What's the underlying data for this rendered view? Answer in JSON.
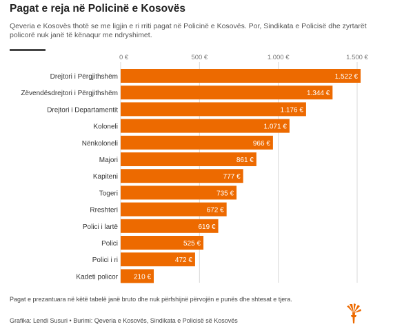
{
  "header": {
    "title": "Pagat e reja në Policinë e Kosovës",
    "subtitle": "Qeveria e Kosovës thotë se me ligjin e ri rriti pagat në Policinë e Kosovës. Por, Sindikata e Policisë dhe zyrtarët policorë nuk janë të kënaqur me ndryshimet."
  },
  "chart_data": {
    "type": "bar",
    "orientation": "horizontal",
    "categories": [
      "Drejtori i Përgjithshëm",
      "Zëvendësdrejtori i Përgjithshëm",
      "Drejtori i Departamentit",
      "Koloneli",
      "Nënkoloneli",
      "Majori",
      "Kapiteni",
      "Togeri",
      "Rreshteri",
      "Polici i lartë",
      "Polici",
      "Polici i ri",
      "Kadeti policor"
    ],
    "values": [
      1522,
      1344,
      1176,
      1071,
      966,
      861,
      777,
      735,
      672,
      619,
      525,
      472,
      210
    ],
    "value_labels": [
      "1.522 €",
      "1.344 €",
      "1.176 €",
      "1.071 €",
      "966 €",
      "861 €",
      "777 €",
      "735 €",
      "672 €",
      "619 €",
      "525 €",
      "472 €",
      "210 €"
    ],
    "xlim": [
      0,
      1500
    ],
    "xticks": [
      0,
      500,
      1000,
      1500
    ],
    "xtick_labels": [
      "0 €",
      "500 €",
      "1.000 €",
      "1.500 €"
    ],
    "axis_position": "top",
    "grid": true,
    "legend": "none",
    "bar_color": "#ED6A00",
    "grid_color": "#D8D8D8"
  },
  "footer": {
    "note": "Pagat e prezantuara në këtë tabelë janë bruto dhe nuk përfshijnë përvojën e punës dhe shtesat e tjera.",
    "credit": "Grafika: Lendi Susuri • Burimi: Qeveria e Kosovës, Sindikata e Policisë së Kosovës"
  },
  "logo": {
    "icon": "rfe-rl-logo-icon",
    "color": "#ED6A00"
  }
}
